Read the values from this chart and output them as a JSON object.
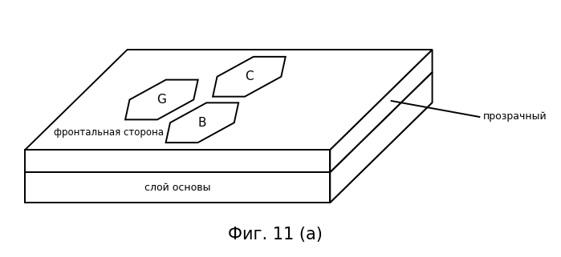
{
  "bg_color": "#ffffff",
  "line_color": "#000000",
  "title": "Фиг. 11 (а)",
  "title_fontsize": 15,
  "label_frontal": "фронтальная сторона",
  "label_base": "слой основы",
  "label_transparent": "прозрачный",
  "hex_labels": [
    "G",
    "C",
    "B"
  ],
  "hex_label_fontsize": 11,
  "figsize": [
    6.99,
    3.21
  ],
  "dpi": 100
}
